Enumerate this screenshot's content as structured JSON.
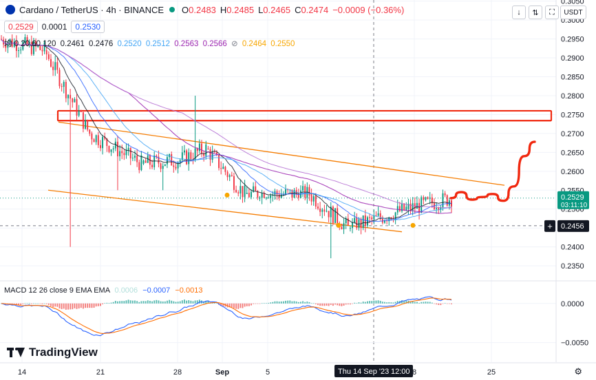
{
  "header": {
    "symbol": "Cardano / TetherUS · 4h · BINANCE",
    "o_label": "O",
    "o": "0.2483",
    "h_label": "H",
    "h": "0.2485",
    "l_label": "L",
    "l": "0.2465",
    "c_label": "C",
    "c": "0.2474",
    "change": "−0.0009 (−0.36%)",
    "bid": "0.2529",
    "spread": "0.0001",
    "ask": "0.2530",
    "ma_label": "均 0 20 60 120",
    "ma_values": [
      "0.2461",
      "0.2476",
      "0.2520",
      "0.2512",
      "0.2563",
      "0.2566",
      "0.2464",
      "0.2550"
    ],
    "currency": "USDT",
    "logo_text": "TradingView"
  },
  "colors": {
    "up": "#089981",
    "down": "#f23645",
    "ma_black": "#131722",
    "ma_blue": "#2962ff",
    "ma_light_blue": "#42a5f5",
    "ma_purple": "#9c27b0",
    "ma_violet": "#b36bd1",
    "ma_yellow": "#f7a600",
    "channel": "#f57c00",
    "drawing": "#f0280f"
  },
  "chart_data": [
    {
      "type": "candlestick",
      "title": "Cardano / TetherUS · 4h · BINANCE",
      "x_ticks": [
        "14",
        "21",
        "28",
        "Sep",
        "5",
        "Thu 14 Sep '23",
        "12:00",
        "8",
        "25"
      ],
      "y_ticks": [
        "0.3050",
        "0.3000",
        "0.2950",
        "0.2900",
        "0.2850",
        "0.2800",
        "0.2750",
        "0.2700",
        "0.2650",
        "0.2600",
        "0.2550",
        "0.2500",
        "0.2450",
        "0.2400",
        "0.2350"
      ],
      "ylim": [
        0.2312,
        0.3053
      ],
      "last_price": "0.2529",
      "countdown": "03:11:10",
      "crosshair_price": "0.2456",
      "sessions": [
        {
          "days": 3.5,
          "start": 0.295,
          "end": 0.292,
          "lo": 0.288,
          "hi": 0.297
        },
        {
          "days": 3.5,
          "start": 0.292,
          "end": 0.27,
          "lo": 0.24,
          "hi": 0.292
        },
        {
          "days": 4.0,
          "start": 0.27,
          "end": 0.262,
          "lo": 0.255,
          "hi": 0.274
        },
        {
          "days": 3.0,
          "start": 0.262,
          "end": 0.263,
          "lo": 0.255,
          "hi": 0.268
        },
        {
          "days": 2.0,
          "start": 0.263,
          "end": 0.266,
          "lo": 0.259,
          "hi": 0.28
        },
        {
          "days": 3.0,
          "start": 0.266,
          "end": 0.254,
          "lo": 0.251,
          "hi": 0.267
        },
        {
          "days": 5.0,
          "start": 0.254,
          "end": 0.254,
          "lo": 0.252,
          "hi": 0.259
        },
        {
          "days": 3.0,
          "start": 0.254,
          "end": 0.245,
          "lo": 0.237,
          "hi": 0.255
        },
        {
          "days": 4.5,
          "start": 0.245,
          "end": 0.25,
          "lo": 0.244,
          "hi": 0.256
        },
        {
          "days": 3.5,
          "start": 0.25,
          "end": 0.2529,
          "lo": 0.246,
          "hi": 0.2575
        }
      ],
      "horizontal_lines": [
        0.2529,
        0.2456
      ],
      "resistance_box": [
        0.2734,
        0.276
      ],
      "channel": {
        "upper": [
          [
            0.273,
            0.2563
          ]
        ],
        "lower": [
          [
            0.255,
            0.244
          ]
        ]
      },
      "moving_averages": [
        {
          "values": [
            0.2461,
            0.2476
          ]
        },
        {
          "values": [
            0.252,
            0.2512
          ]
        },
        {
          "values": [
            0.2563,
            0.2566
          ]
        },
        {
          "values": [
            0.2464,
            0.255
          ]
        }
      ],
      "projection": [
        0.2529,
        0.2545,
        0.2525,
        0.2532,
        0.254,
        0.2522,
        0.256,
        0.264,
        0.2678
      ]
    },
    {
      "type": "histogram",
      "title": "MACD 12 26 close 9 EMA EMA",
      "values_text": [
        "0.0006",
        "−0.0007",
        "−0.0013"
      ],
      "y_ticks": [
        "0.0000",
        "−0.0050"
      ],
      "ylim": [
        -0.0075,
        0.0028
      ]
    }
  ]
}
